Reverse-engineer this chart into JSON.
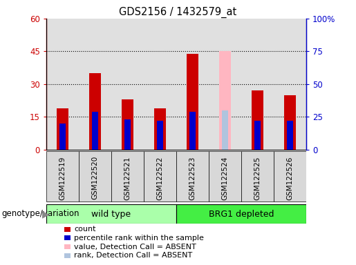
{
  "title": "GDS2156 / 1432579_at",
  "samples": [
    "GSM122519",
    "GSM122520",
    "GSM122521",
    "GSM122522",
    "GSM122523",
    "GSM122524",
    "GSM122525",
    "GSM122526"
  ],
  "count_values": [
    19,
    35,
    23,
    19,
    44,
    0,
    27,
    25
  ],
  "percentile_values": [
    20,
    29,
    23,
    22,
    29,
    30,
    22,
    22
  ],
  "absent_value": 45,
  "absent_rank": 30,
  "absent_sample_idx": 5,
  "ylim_left": [
    0,
    60
  ],
  "ylim_right": [
    0,
    100
  ],
  "yticks_left": [
    0,
    15,
    30,
    45,
    60
  ],
  "ytick_labels_left": [
    "0",
    "15",
    "30",
    "45",
    "60"
  ],
  "ytick_labels_right": [
    "0",
    "25",
    "50",
    "75",
    "100%"
  ],
  "groups": [
    {
      "label": "wild type",
      "start": 0,
      "end": 3,
      "color": "#aaffaa"
    },
    {
      "label": "BRG1 depleted",
      "start": 4,
      "end": 7,
      "color": "#44ee44"
    }
  ],
  "group_label": "genotype/variation",
  "count_color": "#cc0000",
  "percentile_color": "#0000cc",
  "absent_value_color": "#ffb6c1",
  "absent_rank_color": "#b0c4de",
  "legend_items": [
    {
      "color": "#cc0000",
      "label": "count"
    },
    {
      "color": "#0000cc",
      "label": "percentile rank within the sample"
    },
    {
      "color": "#ffb6c1",
      "label": "value, Detection Call = ABSENT"
    },
    {
      "color": "#b0c4de",
      "label": "rank, Detection Call = ABSENT"
    }
  ],
  "grid_dotted_yticks": [
    15,
    30,
    45
  ],
  "plot_bg": "#e0e0e0",
  "xtick_bg": "#c8c8c8",
  "right_axis_color": "#0000cc"
}
